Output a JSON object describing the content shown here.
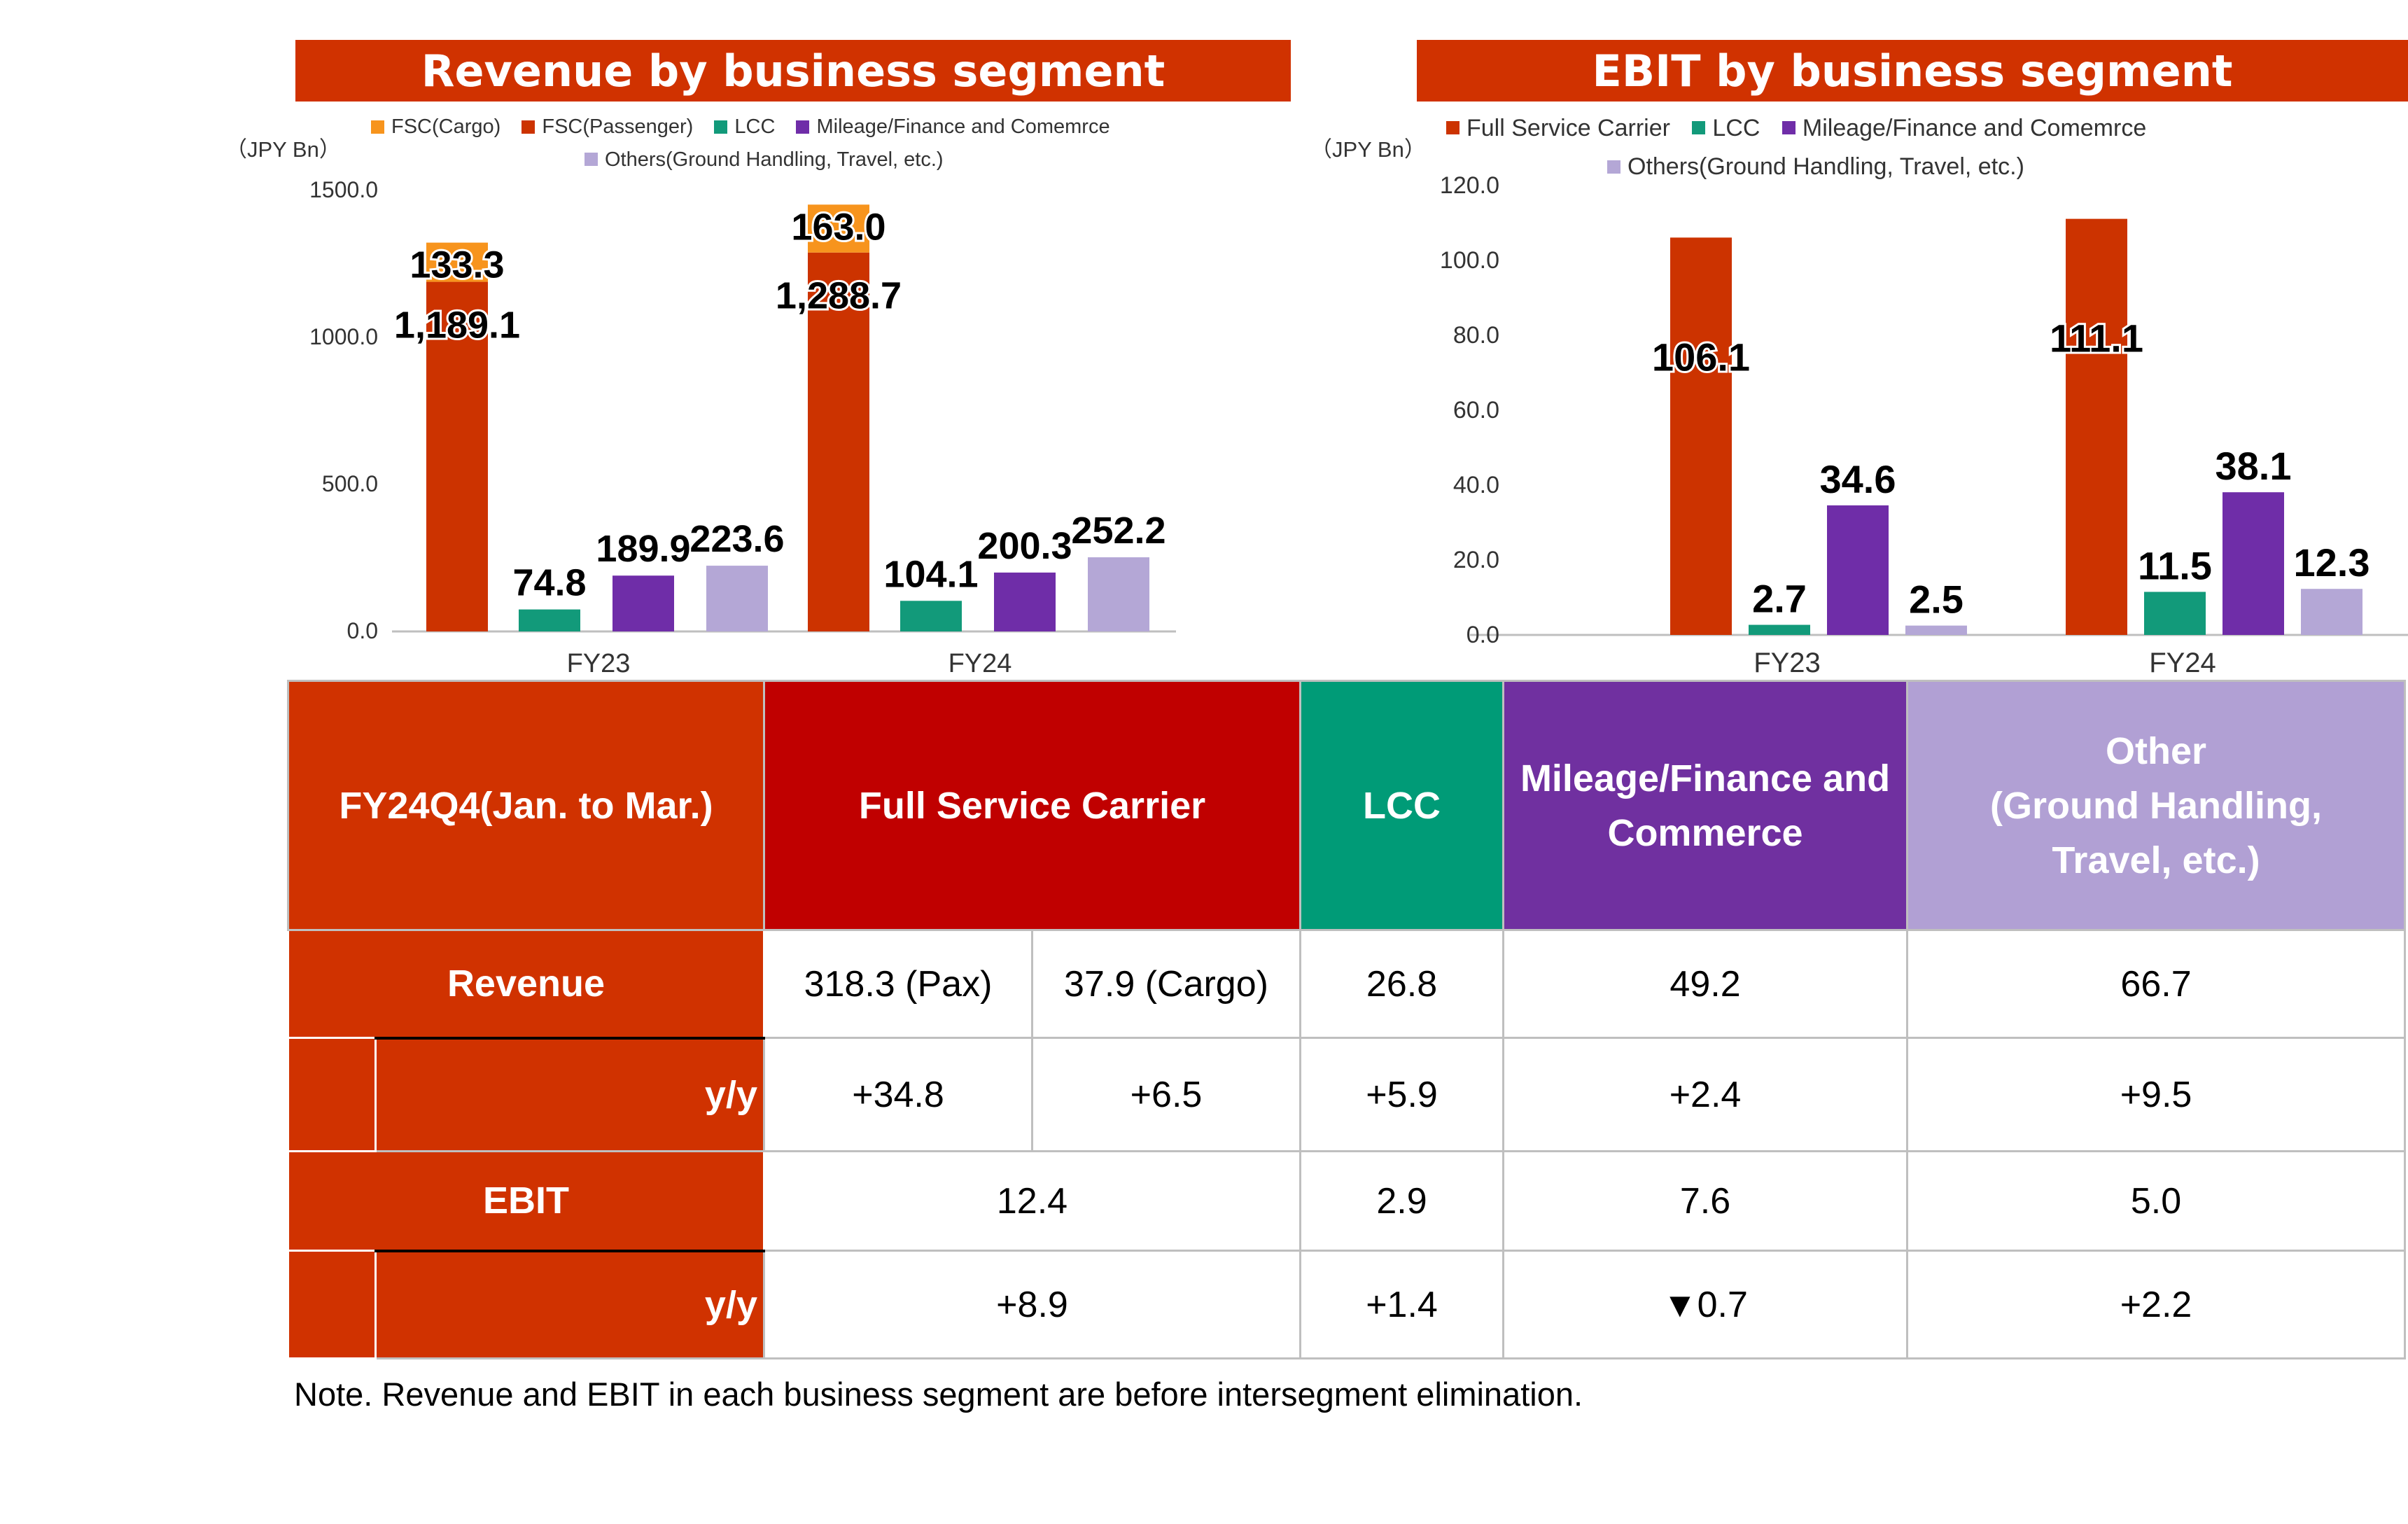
{
  "colors": {
    "fsc_cargo": "#f7941d",
    "fsc_passenger": "#cc3300",
    "full_service_carrier": "#cc3300",
    "lcc": "#129a7a",
    "mileage": "#6f2da8",
    "others": "#b4a7d6",
    "header_red": "#d03200",
    "header_fsc": "#c00000",
    "header_lcc": "#009b77",
    "header_mileage": "#7030a0",
    "header_other": "#b1a0d4"
  },
  "chart_data": [
    {
      "type": "bar",
      "title": "Revenue by business segment",
      "unit": "（JPY Bn）",
      "categories": [
        "FY23",
        "FY24"
      ],
      "ylim": [
        0,
        1500
      ],
      "yticks": [
        "0.0",
        "500.0",
        "1000.0",
        "1500.0"
      ],
      "legend": [
        {
          "name": "FSC(Cargo)",
          "color": "#f7941d"
        },
        {
          "name": "FSC(Passenger)",
          "color": "#cc3300"
        },
        {
          "name": "LCC",
          "color": "#129a7a"
        },
        {
          "name": "Mileage/Finance and Comemrce",
          "color": "#6f2da8"
        },
        {
          "name": "Others(Ground Handling, Travel, etc.)",
          "color": "#b4a7d6"
        }
      ],
      "series": [
        {
          "name": "FSC(Passenger)",
          "values": [
            1189.1,
            1288.7
          ],
          "labels": [
            "1,189.1",
            "1,288.7"
          ],
          "stack": "fsc"
        },
        {
          "name": "FSC(Cargo)",
          "values": [
            133.3,
            163.0
          ],
          "labels": [
            "133.3",
            "163.0"
          ],
          "stack": "fsc"
        },
        {
          "name": "LCC",
          "values": [
            74.8,
            104.1
          ],
          "labels": [
            "74.8",
            "104.1"
          ]
        },
        {
          "name": "Mileage/Finance and Comemrce",
          "values": [
            189.9,
            200.3
          ],
          "labels": [
            "189.9",
            "200.3"
          ]
        },
        {
          "name": "Others(Ground Handling, Travel, etc.)",
          "values": [
            223.6,
            252.2
          ],
          "labels": [
            "223.6",
            "252.2"
          ]
        }
      ],
      "grid": false
    },
    {
      "type": "bar",
      "title": "EBIT by business segment",
      "unit": "（JPY Bn）",
      "categories": [
        "FY23",
        "FY24"
      ],
      "ylim": [
        0,
        120
      ],
      "yticks": [
        "0.0",
        "20.0",
        "40.0",
        "60.0",
        "80.0",
        "100.0",
        "120.0"
      ],
      "legend": [
        {
          "name": "Full Service Carrier",
          "color": "#cc3300"
        },
        {
          "name": "LCC",
          "color": "#129a7a"
        },
        {
          "name": "Mileage/Finance and Comemrce",
          "color": "#6f2da8"
        },
        {
          "name": "Others(Ground Handling, Travel, etc.)",
          "color": "#b4a7d6"
        }
      ],
      "series": [
        {
          "name": "Full Service Carrier",
          "values": [
            106.1,
            111.1
          ],
          "labels": [
            "106.1",
            "111.1"
          ]
        },
        {
          "name": "LCC",
          "values": [
            2.7,
            11.5
          ],
          "labels": [
            "2.7",
            "11.5"
          ]
        },
        {
          "name": "Mileage/Finance and Comemrce",
          "values": [
            34.6,
            38.1
          ],
          "labels": [
            "34.6",
            "38.1"
          ]
        },
        {
          "name": "Others(Ground Handling, Travel, etc.)",
          "values": [
            2.5,
            12.3
          ],
          "labels": [
            "2.5",
            "12.3"
          ]
        }
      ],
      "grid": false
    }
  ],
  "table": {
    "corner": "FY24Q4(Jan. to Mar.)",
    "col_fsc": "Full Service Carrier",
    "col_lcc": "LCC",
    "col_mileage": "Mileage/Finance and Commerce",
    "col_other_line1": "Other",
    "col_other_line2": "(Ground Handling,",
    "col_other_line3": "Travel, etc.)",
    "row_revenue": "Revenue",
    "row_yy": "y/y",
    "row_ebit": "EBIT",
    "revenue": {
      "pax": "318.3 (Pax)",
      "cargo": "37.9 (Cargo)",
      "lcc": "26.8",
      "mileage": "49.2",
      "other": "66.7"
    },
    "revenue_yy": {
      "pax": "+34.8",
      "cargo": "+6.5",
      "lcc": "+5.9",
      "mileage": "+2.4",
      "other": "+9.5"
    },
    "ebit": {
      "fsc": "12.4",
      "lcc": "2.9",
      "mileage": "7.6",
      "other": "5.0"
    },
    "ebit_yy": {
      "fsc": "+8.9",
      "lcc": "+1.4",
      "mileage_symbol": "▼",
      "mileage": "0.7",
      "other": "+2.2"
    }
  },
  "note": "Note. Revenue and EBIT in each business segment are before intersegment elimination."
}
